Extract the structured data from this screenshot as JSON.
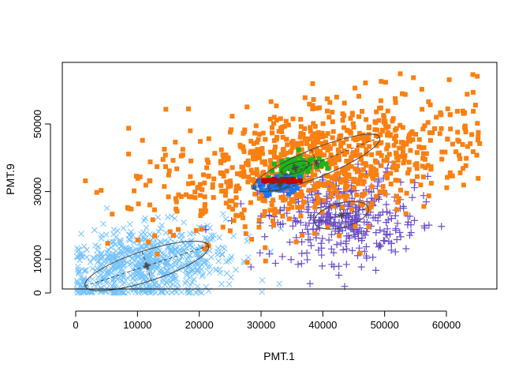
{
  "chart_data": {
    "type": "scatter",
    "xlabel": "PMT.1",
    "ylabel": "PMT.9",
    "xlim": [
      0,
      65000
    ],
    "ylim": [
      0,
      60000
    ],
    "xticks": [
      0,
      10000,
      20000,
      30000,
      40000,
      50000,
      60000
    ],
    "yticks": [
      0,
      10000,
      30000,
      50000
    ],
    "xtick_labels": [
      "0",
      "10000",
      "20000",
      "30000",
      "40000",
      "50000",
      "60000"
    ],
    "ytick_labels": [
      "0",
      "10000",
      "30000",
      "50000"
    ],
    "grid": false,
    "clusters": [
      {
        "color": "#74c2f9",
        "marker": "x",
        "center": [
          11500,
          8000
        ],
        "ellipse_radii": [
          10500,
          4500
        ],
        "ellipse_angle_deg": 18,
        "spread": [
          7500,
          5500
        ],
        "count": 700
      },
      {
        "color": "#6a4cc8",
        "marker": "+",
        "center": [
          43000,
          23000
        ],
        "ellipse_radii": [
          4500,
          3600
        ],
        "ellipse_angle_deg": 15,
        "spread": [
          6000,
          6500
        ],
        "count": 420
      },
      {
        "color": "#f98012",
        "marker": "square",
        "center": [
          39000,
          38500
        ],
        "ellipse_radii": [
          11000,
          4200
        ],
        "ellipse_angle_deg": 22,
        "spread": [
          14000,
          8000
        ],
        "count": 900
      },
      {
        "color": "#1ab51a",
        "marker": "square",
        "center": [
          35500,
          37000
        ],
        "ellipse_radii": [
          2400,
          1600
        ],
        "ellipse_angle_deg": 18,
        "spread": [
          1800,
          1300
        ],
        "count": 90
      },
      {
        "color": "#1e74ea",
        "marker": "square",
        "center": [
          33000,
          32000
        ],
        "ellipse_radii": [
          1900,
          1500
        ],
        "ellipse_angle_deg": 20,
        "spread": [
          1500,
          1200
        ],
        "count": 90
      },
      {
        "color": "#c40000",
        "marker": "square",
        "center": [
          33700,
          33300
        ],
        "ellipse_radii": [
          0,
          0
        ],
        "ellipse_angle_deg": 0,
        "spread": [
          1700,
          250
        ],
        "count": 40
      }
    ],
    "ellipse_color": "#444444"
  }
}
